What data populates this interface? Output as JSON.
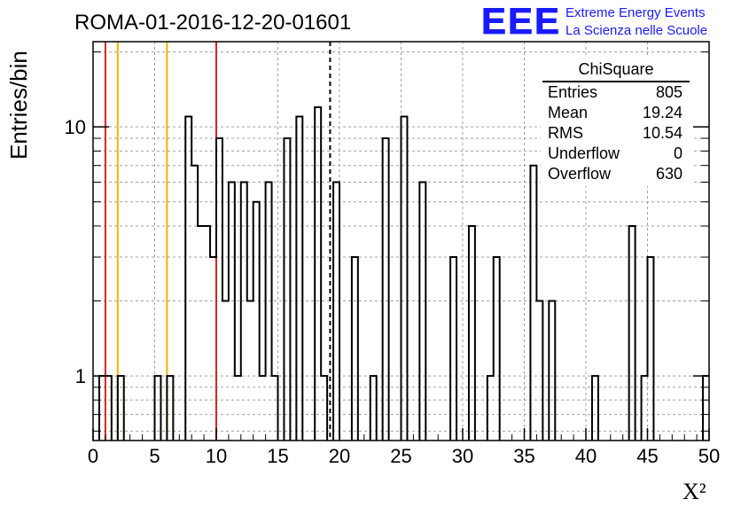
{
  "header": {
    "run_title": "ROMA-01-2016-12-20-01601",
    "logo_text": "EEE",
    "logo_line1": "Extreme Energy Events",
    "logo_line2": "La Scienza nelle Scuole"
  },
  "stats": {
    "title": "ChiSquare",
    "rows": [
      {
        "label": "Entries",
        "value": "805"
      },
      {
        "label": "Mean",
        "value": "19.24"
      },
      {
        "label": "RMS",
        "value": "10.54"
      },
      {
        "label": "Underflow",
        "value": "0"
      },
      {
        "label": "Overflow",
        "value": "630"
      }
    ]
  },
  "colors": {
    "histogram": "#000000",
    "grid": "#a0a0a0",
    "red_lines": "#e0201c",
    "yellow_lines": "#f0b400",
    "logo_blue": "#1a1aff"
  },
  "chart_data": {
    "type": "bar",
    "style": "step-histogram",
    "title": "ROMA-01-2016-12-20-01601",
    "xlabel": "X²",
    "ylabel": "Entries/bin",
    "xlim": [
      0,
      50
    ],
    "ylim": [
      0.55,
      22
    ],
    "y_scale": "log",
    "grid": true,
    "x_ticks": [
      0,
      5,
      10,
      15,
      20,
      25,
      30,
      35,
      40,
      45,
      50
    ],
    "y_ticks": [
      1,
      10
    ],
    "bin_edges_start": 0,
    "bin_width": 0.5,
    "bin_values": [
      0,
      1,
      1,
      0,
      1,
      0,
      0,
      0,
      0,
      0,
      1,
      0,
      1,
      0,
      0,
      11,
      7,
      4,
      4,
      3,
      9,
      2,
      6,
      1,
      6,
      2,
      5,
      1,
      6,
      1,
      0,
      9,
      0,
      11,
      0,
      0,
      12,
      1,
      0,
      6,
      0,
      0,
      3,
      0,
      0,
      1,
      0,
      9,
      0,
      0,
      11,
      0,
      0,
      6,
      0,
      0,
      0,
      0,
      3,
      0,
      0,
      4,
      0,
      0,
      1,
      3,
      0,
      0,
      0,
      0,
      0,
      7,
      2,
      0,
      2,
      0,
      0,
      0,
      0,
      0,
      0,
      1,
      0,
      0,
      0,
      0,
      0,
      4,
      0,
      1,
      3,
      0,
      0,
      0,
      0,
      0,
      0,
      0,
      0,
      1
    ],
    "vertical_lines": [
      {
        "x": 1,
        "color": "red",
        "style": "solid"
      },
      {
        "x": 2,
        "color": "yellow",
        "style": "solid"
      },
      {
        "x": 6,
        "color": "yellow",
        "style": "solid"
      },
      {
        "x": 10,
        "color": "red",
        "style": "solid"
      },
      {
        "x": 19.24,
        "color": "black",
        "style": "dashed"
      }
    ]
  }
}
